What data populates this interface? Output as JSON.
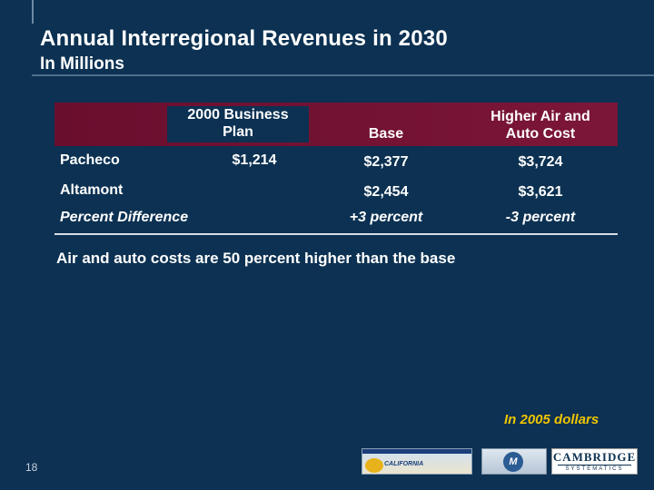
{
  "slide": {
    "title": "Annual Interregional Revenues in 2030",
    "subtitle": "In Millions",
    "page_number": "18"
  },
  "table": {
    "columns": [
      "2000 Business Plan",
      "Base",
      "Higher Air and Auto Cost"
    ],
    "column_lines": [
      [
        "2000 Business",
        "Plan"
      ],
      [
        "Base"
      ],
      [
        "Higher Air and",
        "Auto Cost"
      ]
    ],
    "rows": [
      {
        "label": "Pacheco",
        "values": [
          "$1,214",
          "$2,377",
          "$3,724"
        ]
      },
      {
        "label": "Altamont",
        "values": [
          "",
          "$2,454",
          "$3,621"
        ]
      },
      {
        "label": "Percent Difference",
        "values": [
          "",
          "+3 percent",
          "-3 percent"
        ]
      }
    ]
  },
  "note": "Air and auto costs are 50 percent higher than the base",
  "dollars_note": "In 2005 dollars",
  "logos": {
    "california": "CALIFORNIA",
    "mtc": "M",
    "cambridge": "CAMBRIDGE",
    "cambridge_sub": "SYSTEMATICS"
  },
  "colors": {
    "background": "#0c3152",
    "header": "#6a0e2e",
    "accent_text": "#f0c400"
  }
}
